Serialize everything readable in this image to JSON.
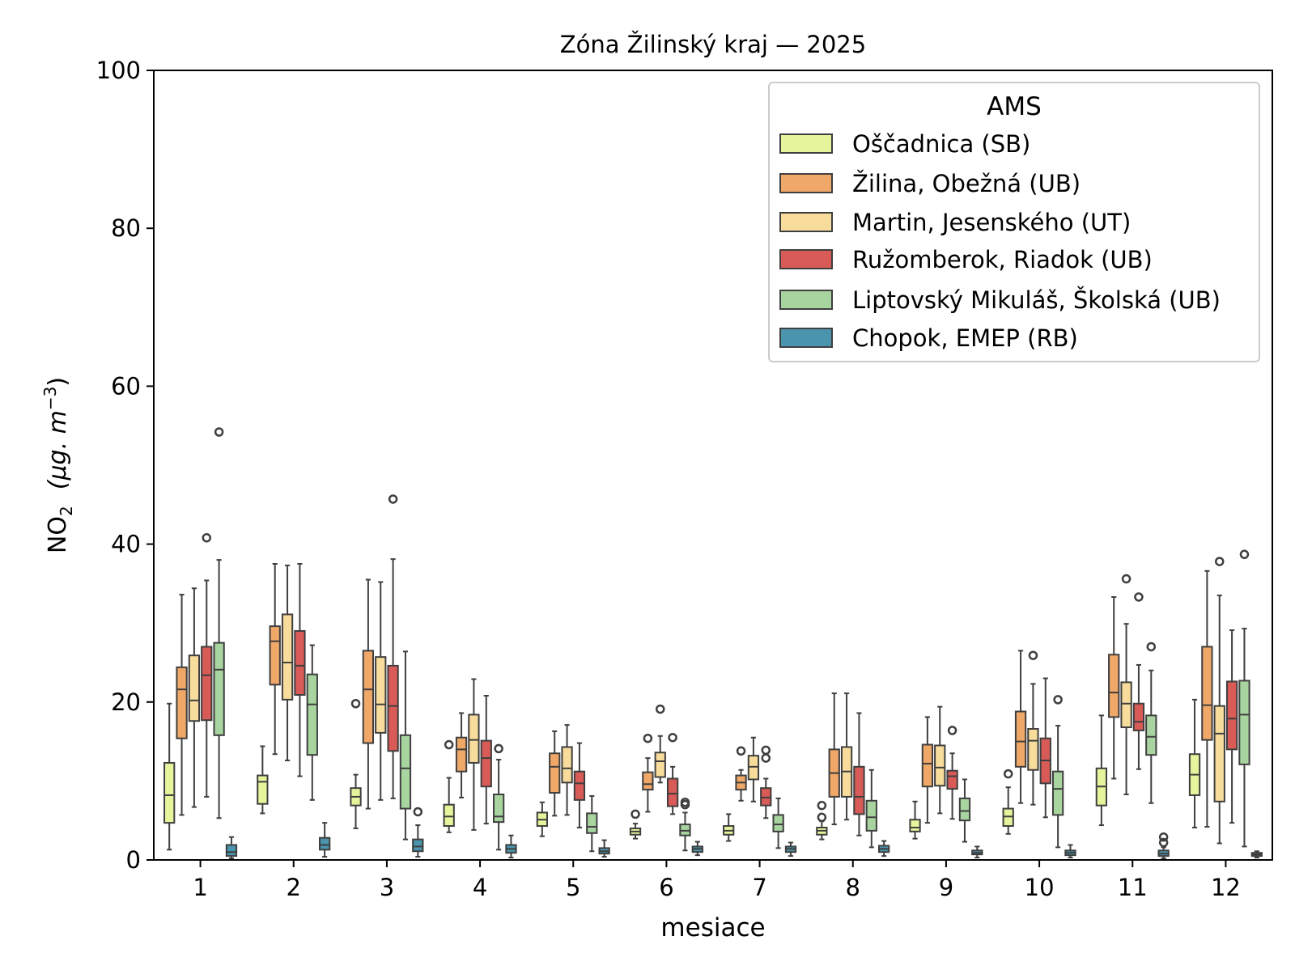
{
  "chart_data": {
    "type": "boxplot",
    "title": "Zóna Žilinský kraj —  2025",
    "xlabel": "mesiace",
    "ylabel": {
      "main": "NO",
      "sub": "2",
      "unit": "(μg. m",
      "sup": "−3",
      "close": ")"
    },
    "ylim": [
      0,
      100
    ],
    "yticks": [
      "0",
      "20",
      "40",
      "60",
      "80",
      "100"
    ],
    "categories": [
      "1",
      "2",
      "3",
      "4",
      "5",
      "6",
      "7",
      "8",
      "9",
      "10",
      "11",
      "12"
    ],
    "grid": false,
    "legend": {
      "title": "AMS",
      "placement": "top-right"
    },
    "series": [
      {
        "name": "Oščadnica (SB)",
        "color": "#e6f49c",
        "boxes": [
          {
            "whislo": 1.3,
            "q1": 4.7,
            "med": 8.2,
            "q3": 12.3,
            "whishi": 19.8,
            "fliers": []
          },
          {
            "whislo": 5.9,
            "q1": 7.1,
            "med": 9.9,
            "q3": 10.7,
            "whishi": 14.4,
            "fliers": []
          },
          {
            "whislo": 4.0,
            "q1": 6.9,
            "med": 8.0,
            "q3": 9.1,
            "whishi": 10.8,
            "fliers": [
              19.8
            ]
          },
          {
            "whislo": 3.5,
            "q1": 4.3,
            "med": 5.5,
            "q3": 7.0,
            "whishi": 10.4,
            "fliers": [
              14.6
            ]
          },
          {
            "whislo": 3.0,
            "q1": 4.3,
            "med": 5.1,
            "q3": 6.0,
            "whishi": 7.3,
            "fliers": []
          },
          {
            "whislo": 2.7,
            "q1": 3.2,
            "med": 3.6,
            "q3": 4.0,
            "whishi": 4.6,
            "fliers": [
              5.8
            ]
          },
          {
            "whislo": 2.4,
            "q1": 3.2,
            "med": 3.7,
            "q3": 4.3,
            "whishi": 5.8,
            "fliers": []
          },
          {
            "whislo": 2.6,
            "q1": 3.2,
            "med": 3.7,
            "q3": 4.1,
            "whishi": 4.9,
            "fliers": [
              5.4,
              6.9
            ]
          },
          {
            "whislo": 2.7,
            "q1": 3.6,
            "med": 4.1,
            "q3": 5.1,
            "whishi": 7.4,
            "fliers": []
          },
          {
            "whislo": 3.3,
            "q1": 4.3,
            "med": 5.5,
            "q3": 6.5,
            "whishi": 9.2,
            "fliers": [
              10.9
            ]
          },
          {
            "whislo": 4.4,
            "q1": 6.9,
            "med": 9.3,
            "q3": 11.6,
            "whishi": 18.3,
            "fliers": []
          },
          {
            "whislo": 4.1,
            "q1": 8.2,
            "med": 10.8,
            "q3": 13.4,
            "whishi": 20.3,
            "fliers": []
          }
        ]
      },
      {
        "name": "Žilina, Obežná (UB)",
        "color": "#f0a868",
        "boxes": [
          {
            "whislo": 5.7,
            "q1": 15.4,
            "med": 21.6,
            "q3": 24.4,
            "whishi": 33.6,
            "fliers": []
          },
          {
            "whislo": 13.4,
            "q1": 22.2,
            "med": 27.7,
            "q3": 29.6,
            "whishi": 37.5,
            "fliers": []
          },
          {
            "whislo": 6.5,
            "q1": 14.8,
            "med": 21.6,
            "q3": 26.5,
            "whishi": 35.5,
            "fliers": []
          },
          {
            "whislo": 7.9,
            "q1": 11.2,
            "med": 14.0,
            "q3": 15.5,
            "whishi": 18.6,
            "fliers": []
          },
          {
            "whislo": 5.6,
            "q1": 8.5,
            "med": 11.8,
            "q3": 13.5,
            "whishi": 16.3,
            "fliers": []
          },
          {
            "whislo": 6.1,
            "q1": 8.9,
            "med": 9.6,
            "q3": 11.1,
            "whishi": 12.9,
            "fliers": [
              15.4
            ]
          },
          {
            "whislo": 7.5,
            "q1": 8.9,
            "med": 9.8,
            "q3": 10.7,
            "whishi": 11.4,
            "fliers": [
              13.8
            ]
          },
          {
            "whislo": 4.5,
            "q1": 8.0,
            "med": 11.0,
            "q3": 14.0,
            "whishi": 21.1,
            "fliers": []
          },
          {
            "whislo": 4.7,
            "q1": 9.3,
            "med": 12.2,
            "q3": 14.6,
            "whishi": 18.1,
            "fliers": []
          },
          {
            "whislo": 7.2,
            "q1": 11.8,
            "med": 15.0,
            "q3": 18.8,
            "whishi": 26.5,
            "fliers": []
          },
          {
            "whislo": 10.3,
            "q1": 18.1,
            "med": 21.2,
            "q3": 26.0,
            "whishi": 33.3,
            "fliers": []
          },
          {
            "whislo": 4.2,
            "q1": 15.2,
            "med": 19.6,
            "q3": 27.0,
            "whishi": 36.6,
            "fliers": []
          }
        ]
      },
      {
        "name": "Martin, Jesenského (UT)",
        "color": "#f8dc9c",
        "boxes": [
          {
            "whislo": 6.7,
            "q1": 17.6,
            "med": 20.2,
            "q3": 25.9,
            "whishi": 34.4,
            "fliers": []
          },
          {
            "whislo": 12.6,
            "q1": 20.3,
            "med": 25.0,
            "q3": 31.1,
            "whishi": 37.3,
            "fliers": []
          },
          {
            "whislo": 7.6,
            "q1": 16.1,
            "med": 19.7,
            "q3": 25.7,
            "whishi": 35.2,
            "fliers": []
          },
          {
            "whislo": 3.8,
            "q1": 12.3,
            "med": 15.2,
            "q3": 18.4,
            "whishi": 22.9,
            "fliers": []
          },
          {
            "whislo": 5.7,
            "q1": 9.8,
            "med": 11.6,
            "q3": 14.3,
            "whishi": 17.1,
            "fliers": []
          },
          {
            "whislo": 9.8,
            "q1": 10.5,
            "med": 12.5,
            "q3": 13.6,
            "whishi": 15.7,
            "fliers": [
              19.1
            ]
          },
          {
            "whislo": 7.4,
            "q1": 10.2,
            "med": 11.8,
            "q3": 13.2,
            "whishi": 15.5,
            "fliers": []
          },
          {
            "whislo": 5.1,
            "q1": 8.0,
            "med": 11.2,
            "q3": 14.3,
            "whishi": 21.1,
            "fliers": []
          },
          {
            "whislo": 5.9,
            "q1": 9.4,
            "med": 11.7,
            "q3": 14.5,
            "whishi": 19.4,
            "fliers": []
          },
          {
            "whislo": 7.0,
            "q1": 11.4,
            "med": 15.1,
            "q3": 16.6,
            "whishi": 22.3,
            "fliers": [
              25.9
            ]
          },
          {
            "whislo": 8.3,
            "q1": 16.8,
            "med": 19.8,
            "q3": 22.5,
            "whishi": 29.9,
            "fliers": [
              35.6
            ]
          },
          {
            "whislo": 2.1,
            "q1": 7.4,
            "med": 16.0,
            "q3": 19.5,
            "whishi": 33.5,
            "fliers": [
              37.8
            ]
          }
        ]
      },
      {
        "name": "Ružomberok, Riadok (UB)",
        "color": "#d95b57",
        "boxes": [
          {
            "whislo": 8.0,
            "q1": 17.7,
            "med": 23.4,
            "q3": 27.0,
            "whishi": 35.4,
            "fliers": [
              40.8
            ]
          },
          {
            "whislo": 10.6,
            "q1": 20.9,
            "med": 24.6,
            "q3": 29.0,
            "whishi": 37.5,
            "fliers": []
          },
          {
            "whislo": 7.8,
            "q1": 13.8,
            "med": 19.5,
            "q3": 24.6,
            "whishi": 38.1,
            "fliers": [
              45.7
            ]
          },
          {
            "whislo": 4.6,
            "q1": 9.3,
            "med": 12.9,
            "q3": 15.1,
            "whishi": 20.8,
            "fliers": []
          },
          {
            "whislo": 4.1,
            "q1": 7.6,
            "med": 9.7,
            "q3": 11.2,
            "whishi": 14.8,
            "fliers": []
          },
          {
            "whislo": 5.8,
            "q1": 6.8,
            "med": 8.4,
            "q3": 10.3,
            "whishi": 11.8,
            "fliers": [
              15.5
            ]
          },
          {
            "whislo": 5.3,
            "q1": 6.9,
            "med": 7.9,
            "q3": 9.1,
            "whishi": 10.3,
            "fliers": [
              12.9,
              13.9
            ]
          },
          {
            "whislo": 3.1,
            "q1": 5.8,
            "med": 8.0,
            "q3": 11.8,
            "whishi": 18.6,
            "fliers": []
          },
          {
            "whislo": 5.2,
            "q1": 9.0,
            "med": 10.6,
            "q3": 11.3,
            "whishi": 13.5,
            "fliers": [
              16.4
            ]
          },
          {
            "whislo": 5.4,
            "q1": 9.7,
            "med": 12.6,
            "q3": 15.4,
            "whishi": 23.0,
            "fliers": []
          },
          {
            "whislo": 11.5,
            "q1": 16.4,
            "med": 17.5,
            "q3": 19.8,
            "whishi": 24.7,
            "fliers": [
              33.3
            ]
          },
          {
            "whislo": 4.7,
            "q1": 14.0,
            "med": 17.9,
            "q3": 22.6,
            "whishi": 29.1,
            "fliers": []
          }
        ]
      },
      {
        "name": "Liptovský Mikuláš, Školská (UB)",
        "color": "#a8d4a0",
        "boxes": [
          {
            "whislo": 5.3,
            "q1": 15.8,
            "med": 24.1,
            "q3": 27.5,
            "whishi": 38.0,
            "fliers": [
              54.2
            ]
          },
          {
            "whislo": 7.6,
            "q1": 13.3,
            "med": 19.7,
            "q3": 23.5,
            "whishi": 27.2,
            "fliers": []
          },
          {
            "whislo": 2.6,
            "q1": 6.5,
            "med": 11.6,
            "q3": 15.8,
            "whishi": 26.4,
            "fliers": []
          },
          {
            "whislo": 1.3,
            "q1": 4.8,
            "med": 5.5,
            "q3": 8.3,
            "whishi": 12.7,
            "fliers": [
              14.1
            ]
          },
          {
            "whislo": 1.1,
            "q1": 3.4,
            "med": 4.2,
            "q3": 5.9,
            "whishi": 8.1,
            "fliers": []
          },
          {
            "whislo": 1.2,
            "q1": 3.1,
            "med": 3.7,
            "q3": 4.5,
            "whishi": 6.0,
            "fliers": [
              7.0,
              7.3
            ]
          },
          {
            "whislo": 1.5,
            "q1": 3.6,
            "med": 4.5,
            "q3": 5.7,
            "whishi": 7.8,
            "fliers": []
          },
          {
            "whislo": 1.6,
            "q1": 3.7,
            "med": 5.4,
            "q3": 7.5,
            "whishi": 11.4,
            "fliers": []
          },
          {
            "whislo": 2.3,
            "q1": 5.0,
            "med": 6.2,
            "q3": 7.8,
            "whishi": 10.2,
            "fliers": []
          },
          {
            "whislo": 1.6,
            "q1": 5.7,
            "med": 9.0,
            "q3": 11.2,
            "whishi": 17.0,
            "fliers": [
              20.3
            ]
          },
          {
            "whislo": 7.2,
            "q1": 13.3,
            "med": 15.6,
            "q3": 18.3,
            "whishi": 24.0,
            "fliers": [
              27.0
            ]
          },
          {
            "whislo": 1.7,
            "q1": 12.1,
            "med": 18.4,
            "q3": 22.7,
            "whishi": 29.3,
            "fliers": [
              38.7
            ]
          }
        ]
      },
      {
        "name": "Chopok, EMEP (RB)",
        "color": "#4a95ad",
        "boxes": [
          {
            "whislo": 0.2,
            "q1": 0.5,
            "med": 1.0,
            "q3": 1.9,
            "whishi": 2.9,
            "fliers": []
          },
          {
            "whislo": 0.4,
            "q1": 1.3,
            "med": 1.9,
            "q3": 2.8,
            "whishi": 4.7,
            "fliers": []
          },
          {
            "whislo": 0.4,
            "q1": 1.1,
            "med": 1.7,
            "q3": 2.6,
            "whishi": 4.4,
            "fliers": [
              6.1
            ]
          },
          {
            "whislo": 0.3,
            "q1": 0.9,
            "med": 1.4,
            "q3": 1.9,
            "whishi": 3.1,
            "fliers": []
          },
          {
            "whislo": 0.4,
            "q1": 0.8,
            "med": 1.1,
            "q3": 1.5,
            "whishi": 2.5,
            "fliers": []
          },
          {
            "whislo": 0.6,
            "q1": 1.0,
            "med": 1.4,
            "q3": 1.7,
            "whishi": 2.3,
            "fliers": []
          },
          {
            "whislo": 0.5,
            "q1": 1.0,
            "med": 1.4,
            "q3": 1.7,
            "whishi": 2.2,
            "fliers": []
          },
          {
            "whislo": 0.5,
            "q1": 1.0,
            "med": 1.4,
            "q3": 1.8,
            "whishi": 2.4,
            "fliers": []
          },
          {
            "whislo": 0.3,
            "q1": 0.7,
            "med": 0.9,
            "q3": 1.2,
            "whishi": 1.7,
            "fliers": []
          },
          {
            "whislo": 0.3,
            "q1": 0.6,
            "med": 0.9,
            "q3": 1.2,
            "whishi": 1.9,
            "fliers": []
          },
          {
            "whislo": 0.2,
            "q1": 0.5,
            "med": 0.8,
            "q3": 1.2,
            "whishi": 1.6,
            "fliers": [
              2.2,
              2.9
            ]
          },
          {
            "whislo": 0.3,
            "q1": 0.5,
            "med": 0.7,
            "q3": 0.9,
            "whishi": 1.1,
            "fliers": []
          }
        ]
      }
    ]
  }
}
